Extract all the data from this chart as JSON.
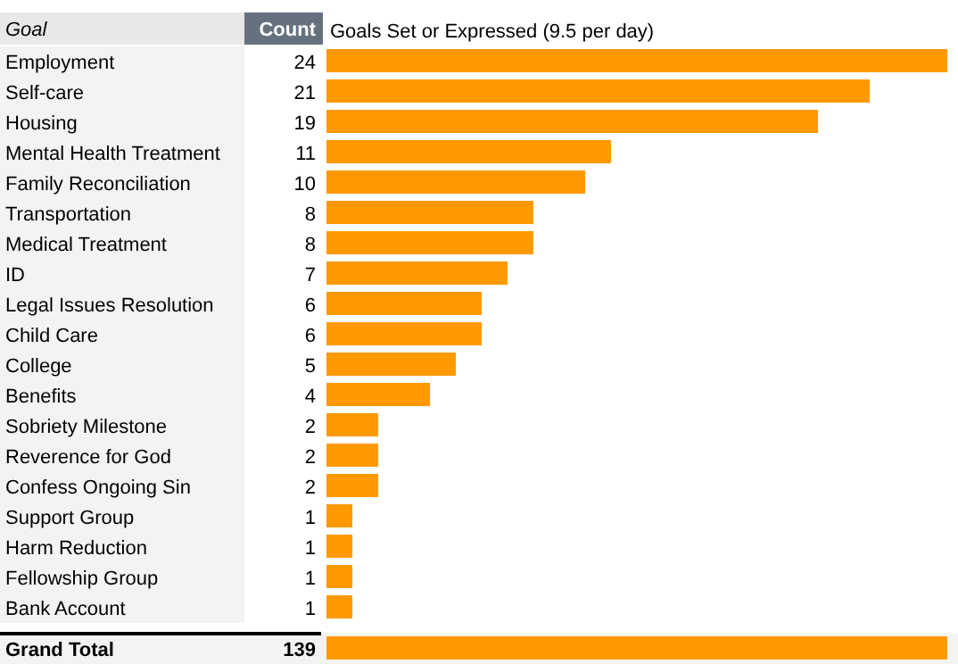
{
  "chart_data": [
    {
      "type": "bar",
      "orientation": "horizontal",
      "title": "Goals Set or Expressed (9.5 per day)",
      "ylabel": "Goal",
      "annotations": [
        "Count"
      ],
      "categories": [
        "Employment",
        "Self-care",
        "Housing",
        "Mental Health Treatment",
        "Family Reconciliation",
        "Transportation",
        "Medical Treatment",
        "ID",
        "Legal Issues Resolution",
        "Child Care",
        "College",
        "Benefits",
        "Sobriety Milestone",
        "Reverence for God",
        "Confess Ongoing Sin",
        "Support Group",
        "Harm Reduction",
        "Fellowship Group",
        "Bank Account"
      ],
      "values": [
        24,
        21,
        19,
        11,
        10,
        8,
        8,
        7,
        6,
        6,
        5,
        4,
        2,
        2,
        2,
        1,
        1,
        1,
        1
      ],
      "color": "#ff9900",
      "data_labels": true
    },
    {
      "type": "bar",
      "orientation": "horizontal",
      "categories": [
        "Grand Total"
      ],
      "values": [
        139
      ],
      "color": "#ff9900",
      "data_labels": true
    }
  ]
}
